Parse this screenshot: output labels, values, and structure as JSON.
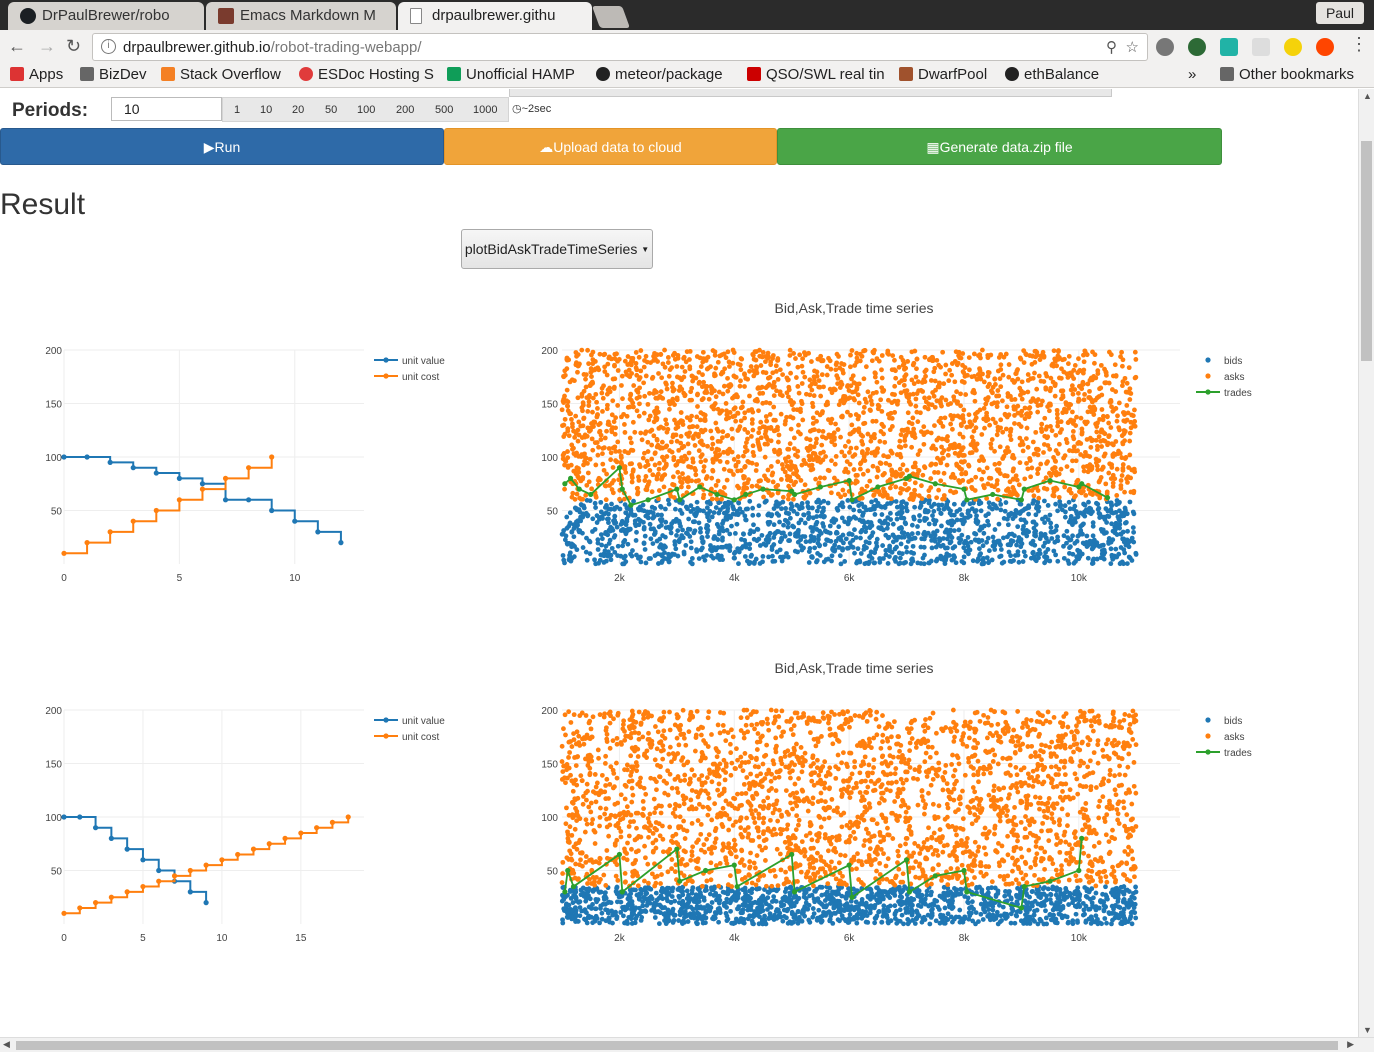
{
  "browser": {
    "tabs": [
      {
        "label": "DrPaulBrewer/robo",
        "color": "#1b1f23"
      },
      {
        "label": "Emacs Markdown M",
        "color": "#7a3b2e"
      },
      {
        "label": "drpaulbrewer.githu",
        "color": "#f2f1f0"
      }
    ],
    "profile": "Paul",
    "url_host": "drpaulbrewer.github.io",
    "url_path": "/robot-trading-webapp/",
    "bookmarks": [
      {
        "label": "Apps",
        "color": "#d33"
      },
      {
        "label": "BizDev",
        "color": "#555"
      },
      {
        "label": "Stack Overflow",
        "color": "#f48024"
      },
      {
        "label": "ESDoc Hosting S",
        "color": "#e03b3b"
      },
      {
        "label": "Unofficial HAMP",
        "color": "#0f9d58"
      },
      {
        "label": "meteor/package",
        "color": "#222"
      },
      {
        "label": "QSO/SWL real tin",
        "color": "#c00"
      },
      {
        "label": "DwarfPool",
        "color": "#a0522d"
      },
      {
        "label": "ethBalance",
        "color": "#222"
      }
    ],
    "more_bookmarks": "»",
    "other_bookmarks": "Other bookmarks"
  },
  "controls": {
    "periods_label": "Periods:",
    "periods_value": "10",
    "period_options": [
      "1",
      "10",
      "20",
      "50",
      "100",
      "200",
      "500",
      "1000"
    ],
    "timer": "~2sec",
    "run_label": "Run",
    "upload_label": "Upload data to cloud",
    "zip_label": "Generate data.zip file"
  },
  "result": {
    "title": "Result",
    "plot_selector": "plotBidAskTradeTimeSeries"
  },
  "chart_data": [
    {
      "type": "line",
      "shape": "step",
      "xlim": [
        0,
        13
      ],
      "ylim": [
        0,
        200
      ],
      "xticks": [
        0,
        5,
        10
      ],
      "yticks": [
        50,
        100,
        150,
        200
      ],
      "legend_position": "top-right",
      "series": [
        {
          "name": "unit value",
          "color": "#1f77b4",
          "x": [
            0,
            1,
            2,
            3,
            4,
            5,
            6,
            7,
            8,
            9,
            10,
            11,
            12
          ],
          "y": [
            100,
            100,
            95,
            90,
            85,
            80,
            75,
            60,
            60,
            50,
            40,
            30,
            20
          ]
        },
        {
          "name": "unit cost",
          "color": "#ff7f0e",
          "x": [
            0,
            1,
            2,
            3,
            4,
            5,
            6,
            7,
            8,
            9
          ],
          "y": [
            10,
            20,
            30,
            40,
            50,
            60,
            70,
            80,
            90,
            100
          ]
        }
      ]
    },
    {
      "type": "scatter",
      "title": "Bid,Ask,Trade time series",
      "xlim": [
        1000,
        11100
      ],
      "ylim": [
        0,
        200
      ],
      "xticks": [
        2000,
        4000,
        6000,
        8000,
        10000
      ],
      "xticklabels": [
        "2k",
        "4k",
        "6k",
        "8k",
        "10k"
      ],
      "yticks": [
        50,
        100,
        150,
        200
      ],
      "legend_position": "top-right",
      "series": [
        {
          "name": "bids",
          "color": "#1f77b4",
          "mode": "markers",
          "y_range": [
            0,
            60
          ]
        },
        {
          "name": "asks",
          "color": "#ff7f0e",
          "mode": "markers",
          "y_range": [
            60,
            200
          ]
        },
        {
          "name": "trades",
          "color": "#2ca02c",
          "mode": "lines+markers",
          "x": [
            1050,
            1150,
            1300,
            1500,
            2000,
            2050,
            2200,
            2500,
            3000,
            3050,
            3400,
            3700,
            4000,
            4200,
            4500,
            5000,
            5050,
            5500,
            6000,
            6050,
            6500,
            7000,
            7050,
            7500,
            8000,
            8050,
            8500,
            9000,
            9050,
            9500,
            10000,
            10050,
            10500
          ],
          "y": [
            75,
            80,
            70,
            65,
            90,
            70,
            55,
            60,
            70,
            60,
            72,
            65,
            60,
            65,
            70,
            68,
            65,
            72,
            78,
            60,
            72,
            80,
            82,
            75,
            70,
            60,
            65,
            60,
            70,
            78,
            72,
            75,
            62
          ]
        }
      ]
    },
    {
      "type": "line",
      "shape": "step",
      "xlim": [
        0,
        19
      ],
      "ylim": [
        0,
        200
      ],
      "xticks": [
        0,
        5,
        10,
        15
      ],
      "yticks": [
        50,
        100,
        150,
        200
      ],
      "legend_position": "top-right",
      "series": [
        {
          "name": "unit value",
          "color": "#1f77b4",
          "x": [
            0,
            1,
            2,
            3,
            4,
            5,
            6,
            7,
            8,
            9
          ],
          "y": [
            100,
            100,
            90,
            80,
            70,
            60,
            50,
            40,
            30,
            20
          ]
        },
        {
          "name": "unit cost",
          "color": "#ff7f0e",
          "x": [
            0,
            1,
            2,
            3,
            4,
            5,
            6,
            7,
            8,
            9,
            10,
            11,
            12,
            13,
            14,
            15,
            16,
            17,
            18
          ],
          "y": [
            10,
            15,
            20,
            25,
            30,
            35,
            40,
            45,
            50,
            55,
            60,
            65,
            70,
            75,
            80,
            85,
            90,
            95,
            100
          ]
        }
      ]
    },
    {
      "type": "scatter",
      "title": "Bid,Ask,Trade time series",
      "xlim": [
        1000,
        11100
      ],
      "ylim": [
        0,
        200
      ],
      "xticks": [
        2000,
        4000,
        6000,
        8000,
        10000
      ],
      "xticklabels": [
        "2k",
        "4k",
        "6k",
        "8k",
        "10k"
      ],
      "yticks": [
        50,
        100,
        150,
        200
      ],
      "legend_position": "top-right",
      "series": [
        {
          "name": "bids",
          "color": "#1f77b4",
          "mode": "markers",
          "y_range": [
            0,
            35
          ]
        },
        {
          "name": "asks",
          "color": "#ff7f0e",
          "mode": "markers",
          "y_range": [
            35,
            200
          ]
        },
        {
          "name": "trades",
          "color": "#2ca02c",
          "mode": "lines+markers",
          "x": [
            1050,
            1100,
            1200,
            2000,
            2050,
            3000,
            3050,
            3500,
            4000,
            4050,
            5000,
            5050,
            6000,
            6050,
            7000,
            7050,
            7500,
            8000,
            8050,
            9000,
            9050,
            9500,
            10000,
            10050
          ],
          "y": [
            30,
            50,
            35,
            65,
            30,
            70,
            40,
            50,
            55,
            35,
            65,
            30,
            55,
            25,
            60,
            30,
            45,
            50,
            30,
            15,
            35,
            40,
            50,
            80
          ]
        }
      ]
    }
  ]
}
